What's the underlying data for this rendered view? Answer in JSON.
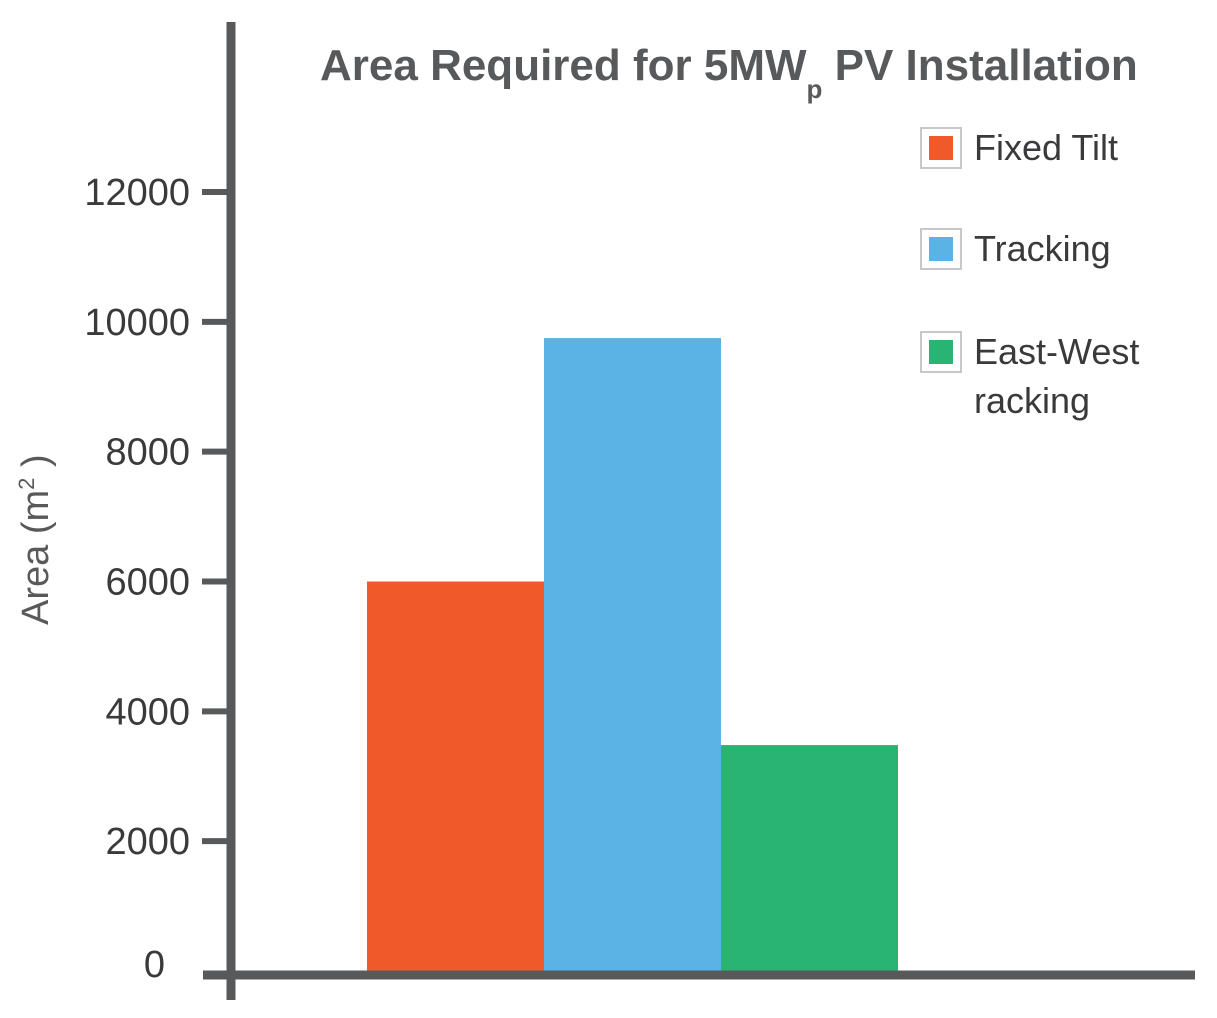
{
  "chart_data": {
    "type": "bar",
    "title": "Area Required for 5MW",
    "title_subscript": "p",
    "title_suffix": " PV Installation",
    "ylabel": "Area (m",
    "ylabel_sup": "2",
    "ylabel_end": " )",
    "xlabel": "",
    "ylim": [
      0,
      13000
    ],
    "yticks": [
      0,
      2000,
      4000,
      6000,
      8000,
      10000,
      12000
    ],
    "ytick_labels": [
      "0",
      "2000",
      "4000",
      "6000",
      "8000",
      "10000",
      "12000"
    ],
    "grid": false,
    "legend_position": "top-right",
    "categories": [
      "Fixed Tilt",
      "Tracking",
      "East-West racking"
    ],
    "values": [
      6000,
      9750,
      3480
    ],
    "colors": [
      "#f05a2b",
      "#5ab2e5",
      "#29b473"
    ],
    "legend": [
      {
        "lines": [
          "Fixed Tilt"
        ],
        "color": "#f05a2b"
      },
      {
        "lines": [
          "Tracking"
        ],
        "color": "#5ab2e5"
      },
      {
        "lines": [
          "East-West",
          "racking"
        ],
        "color": "#29b473"
      }
    ],
    "axis_color": "#58595b"
  }
}
